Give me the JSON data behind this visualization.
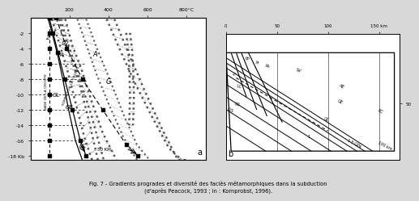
{
  "fig_title": "Fig. 7 - Gradients progrades et diversité des faciès métamorphiques dans la subduction\n(d'après Peacock, 1993 ; in : Kornprobst, 1996).",
  "bg_color": "#d8d8d8",
  "panel_a": {
    "xlim": [
      0,
      900
    ],
    "ylim": [
      -18.5,
      0
    ],
    "xticks": [
      200,
      400,
      600,
      800
    ],
    "xticklabels": [
      "200",
      "400",
      "600",
      "800°C"
    ],
    "yticks": [
      -2,
      -4,
      -6,
      -8,
      -10,
      -12,
      -14,
      -16,
      -18
    ],
    "yticklabels": [
      "-2",
      "-4",
      "-6",
      "-8",
      "-10",
      "-12",
      "-14",
      "-16",
      "-18 Kb"
    ],
    "label_a": "a"
  },
  "panel_b": {
    "xlim": [
      0,
      170
    ],
    "ylim": [
      95,
      -5
    ],
    "xticks": [
      0,
      50,
      100,
      150
    ],
    "xticklabels": [
      "0",
      "50",
      "100",
      "150 km"
    ],
    "ytick_right": 50,
    "label_b": "b"
  }
}
